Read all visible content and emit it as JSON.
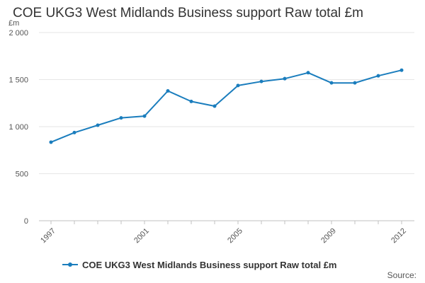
{
  "chart_data": {
    "type": "line",
    "title": "COE UKG3 West Midlands Business support Raw total £m",
    "ylabel": "£m",
    "xlabel": "",
    "ylim": [
      0,
      2000
    ],
    "yticks": [
      0,
      500,
      1000,
      1500,
      2000
    ],
    "ytick_labels": [
      "0",
      "500",
      "1 000",
      "1 500",
      "2 000"
    ],
    "xtick_labels": [
      "1997",
      "2001",
      "2005",
      "2009",
      "2012"
    ],
    "x": [
      1997,
      1998,
      1999,
      2000,
      2001,
      2002,
      2003,
      2004,
      2005,
      2006,
      2007,
      2008,
      2009,
      2010,
      2011,
      2012
    ],
    "series": [
      {
        "name": "COE UKG3 West Midlands Business support Raw total £m",
        "color": "#1a7dbd",
        "values": [
          835,
          937,
          1015,
          1093,
          1112,
          1380,
          1268,
          1218,
          1437,
          1480,
          1510,
          1573,
          1465,
          1465,
          1540,
          1600
        ]
      }
    ],
    "grid": true,
    "legend": "bottom"
  },
  "source_label": "Source:"
}
